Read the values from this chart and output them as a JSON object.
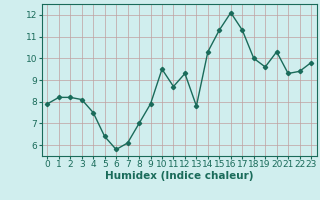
{
  "x": [
    0,
    1,
    2,
    3,
    4,
    5,
    6,
    7,
    8,
    9,
    10,
    11,
    12,
    13,
    14,
    15,
    16,
    17,
    18,
    19,
    20,
    21,
    22,
    23
  ],
  "y": [
    7.9,
    8.2,
    8.2,
    8.1,
    7.5,
    6.4,
    5.8,
    6.1,
    7.0,
    7.9,
    9.5,
    8.7,
    9.3,
    7.8,
    10.3,
    11.3,
    12.1,
    11.3,
    10.0,
    9.6,
    10.3,
    9.3,
    9.4,
    9.8
  ],
  "line_color": "#1a6b5a",
  "marker": "D",
  "marker_size": 2.2,
  "xlabel": "Humidex (Indice chaleur)",
  "ylim": [
    5.5,
    12.5
  ],
  "xlim": [
    -0.5,
    23.5
  ],
  "yticks": [
    6,
    7,
    8,
    9,
    10,
    11,
    12
  ],
  "xticks": [
    0,
    1,
    2,
    3,
    4,
    5,
    6,
    7,
    8,
    9,
    10,
    11,
    12,
    13,
    14,
    15,
    16,
    17,
    18,
    19,
    20,
    21,
    22,
    23
  ],
  "bg_color": "#d0eeee",
  "grid_color": "#c0a0a0",
  "tick_label_fontsize": 6.5,
  "xlabel_fontsize": 7.5,
  "line_width": 1.0
}
